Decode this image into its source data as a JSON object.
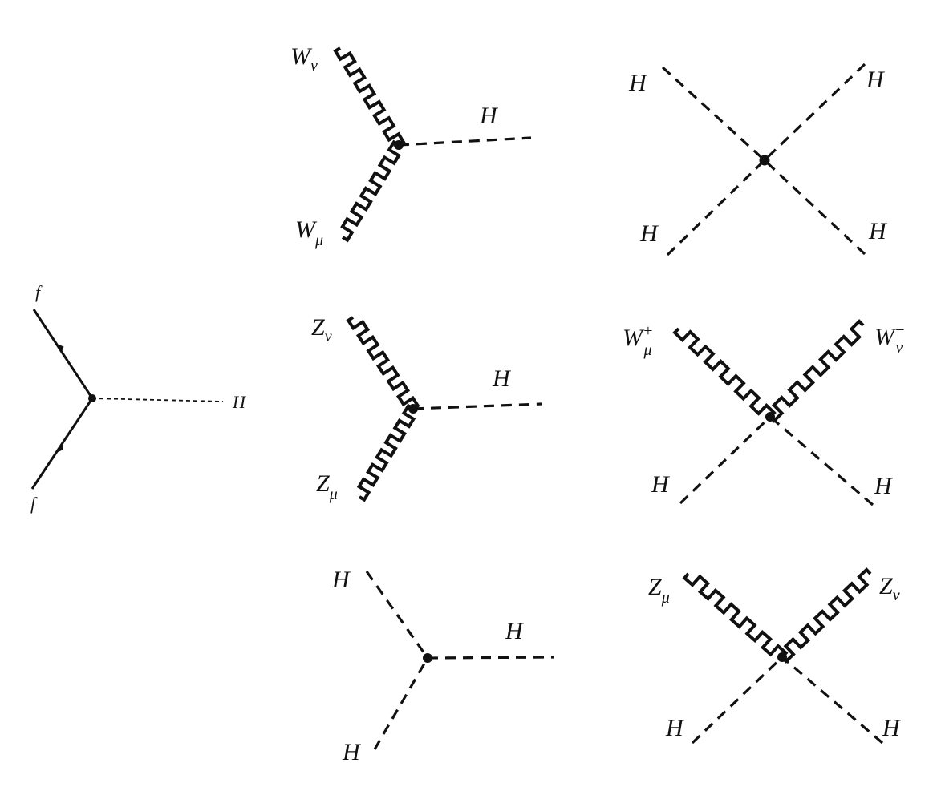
{
  "diagrams": {
    "fermion_higgs": {
      "f_top": "f",
      "f_bottom": "f",
      "higgs": "H"
    },
    "wwh": {
      "w_top": "W",
      "w_top_index": "ν",
      "w_bottom": "W",
      "w_bottom_index": "μ",
      "higgs": "H"
    },
    "zzh": {
      "z_top": "Z",
      "z_top_index": "ν",
      "z_bottom": "Z",
      "z_bottom_index": "μ",
      "higgs": "H"
    },
    "hhh": {
      "h_top": "H",
      "h_bottom": "H",
      "h_right": "H"
    },
    "hhhh": {
      "h_top_left": "H",
      "h_top_right": "H",
      "h_bottom_left": "H",
      "h_bottom_right": "H"
    },
    "wwhh": {
      "w_left": "W",
      "w_left_sup": "+",
      "w_left_index": "μ",
      "w_right": "W",
      "w_right_sup": "−",
      "w_right_index": "ν",
      "h_left": "H",
      "h_right": "H"
    },
    "zzhh": {
      "z_left": "Z",
      "z_left_index": "μ",
      "z_right": "Z",
      "z_right_index": "ν",
      "h_left": "H",
      "h_right": "H"
    }
  }
}
